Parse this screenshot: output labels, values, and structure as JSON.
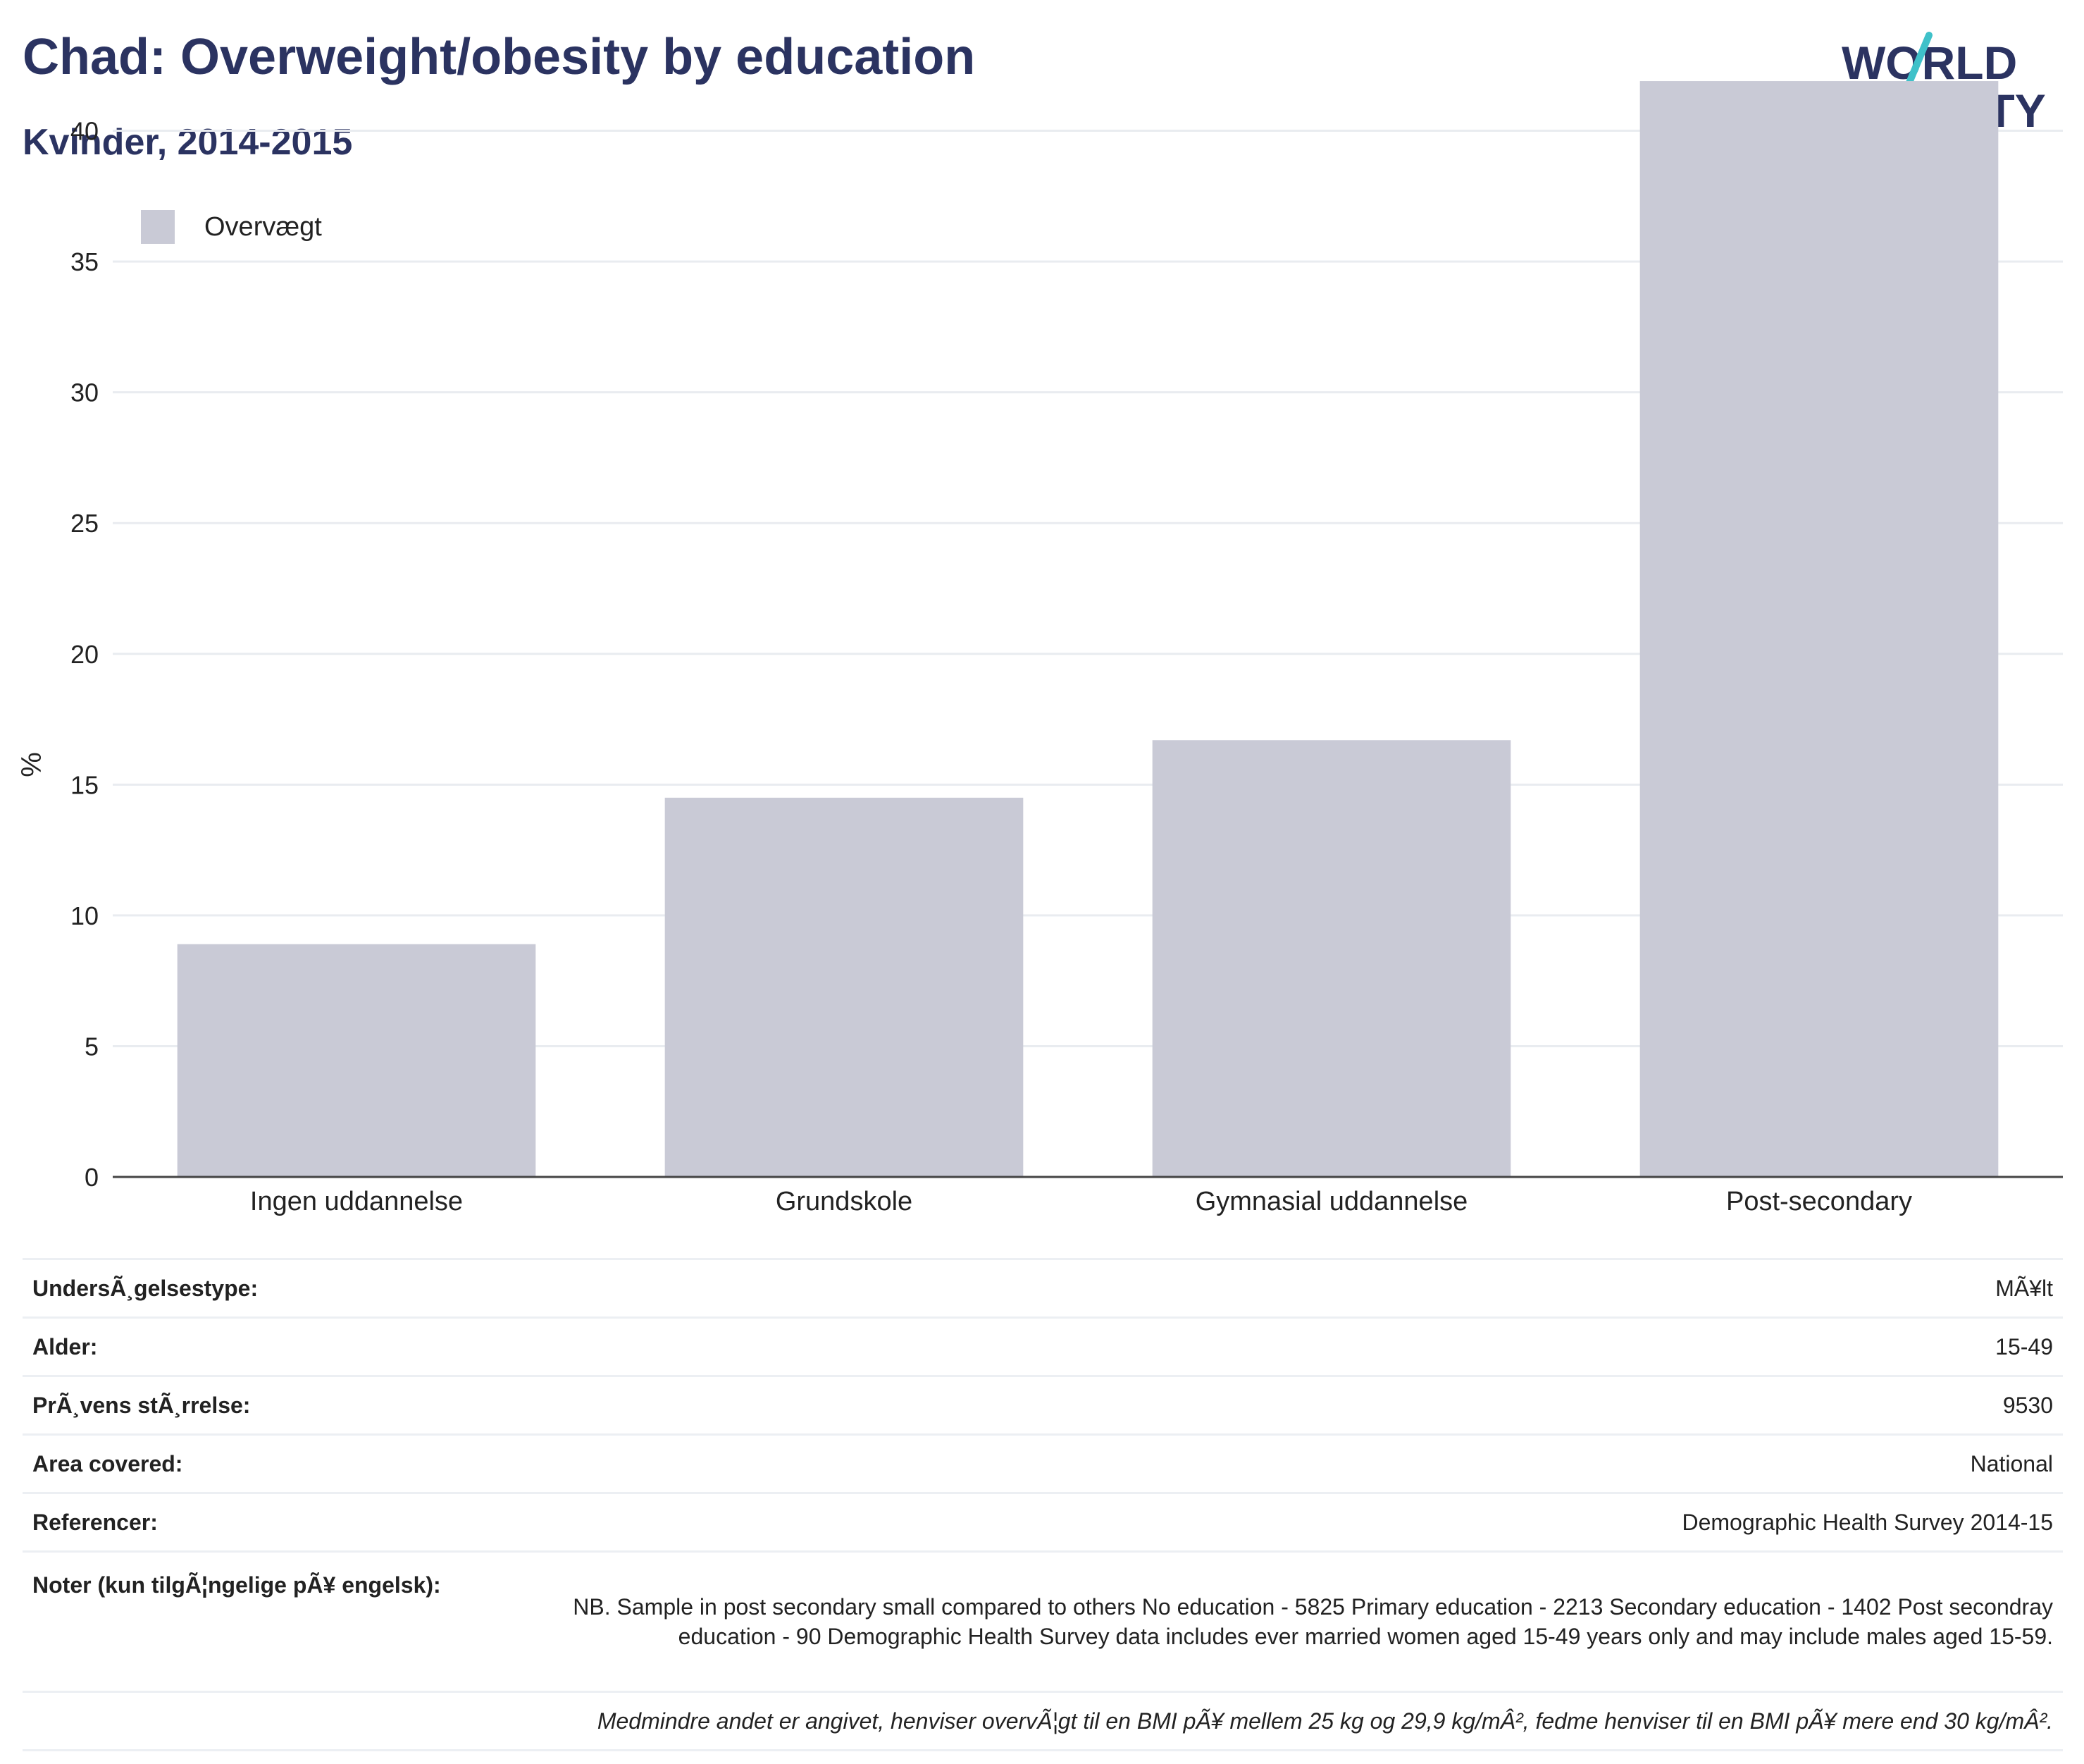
{
  "header": {
    "title": "Chad: Overweight/obesity by education",
    "subtitle": "Kvinder, 2014-2015"
  },
  "logo": {
    "line1": "WORLD",
    "line2": "OBESITY"
  },
  "colors": {
    "bar": "#c9cad6",
    "title": "#2b3361",
    "logo_teal": "#3fc1c9",
    "logo_coral": "#e8735f"
  },
  "chart_data": {
    "type": "bar",
    "categories": [
      "Ingen uddannelse",
      "Grundskole",
      "Gymnasial uddannelse",
      "Post-secondary"
    ],
    "series": [
      {
        "name": "Overvægt",
        "values": [
          8.9,
          14.5,
          16.7,
          41.9
        ]
      }
    ],
    "ylabel": "%",
    "xlabel": "",
    "ylim": [
      0,
      45
    ],
    "yticks": [
      0,
      5,
      10,
      15,
      20,
      25,
      30,
      35,
      40
    ],
    "grid": true,
    "legend": "top-left"
  },
  "info": [
    {
      "label": "UndersÃ¸gelsestype:",
      "value": "MÃ¥lt"
    },
    {
      "label": "Alder:",
      "value": "15-49"
    },
    {
      "label": "PrÃ¸vens stÃ¸rrelse:",
      "value": "9530"
    },
    {
      "label": "Area covered:",
      "value": "National"
    },
    {
      "label": "Referencer:",
      "value": "Demographic Health Survey 2014-15"
    },
    {
      "label": "Noter (kun tilgÃ¦ngelige pÃ¥ engelsk):",
      "value": "NB. Sample in post secondary small compared to others No education - 5825 Primary education - 2213 Secondary education - 1402 Post secondray education - 90 Demographic Health Survey data includes ever married women aged 15-49 years only and may include males aged 15-59."
    }
  ],
  "footnote": "Medmindre andet er angivet, henviser overvÃ¦gt til en BMI pÃ¥ mellem 25 kg og 29,9 kg/mÂ², fedme henviser til en BMI pÃ¥ mere end 30 kg/mÂ²."
}
